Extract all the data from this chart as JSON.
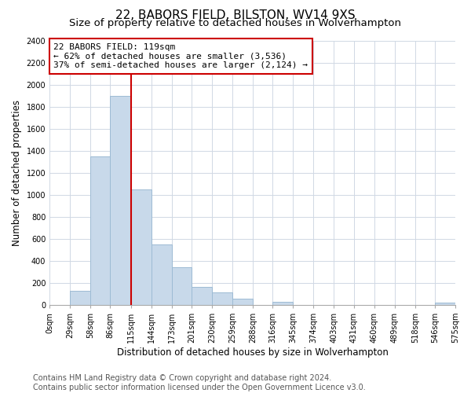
{
  "title": "22, BABORS FIELD, BILSTON, WV14 9XS",
  "subtitle": "Size of property relative to detached houses in Wolverhampton",
  "xlabel": "Distribution of detached houses by size in Wolverhampton",
  "ylabel": "Number of detached properties",
  "footer_line1": "Contains HM Land Registry data © Crown copyright and database right 2024.",
  "footer_line2": "Contains public sector information licensed under the Open Government Licence v3.0.",
  "bar_left_edges": [
    0,
    29,
    58,
    86,
    115,
    144,
    173,
    201,
    230,
    259,
    288,
    316,
    345,
    374,
    403,
    431,
    460,
    489,
    518,
    546
  ],
  "bar_widths": [
    29,
    29,
    28,
    29,
    29,
    29,
    28,
    29,
    29,
    29,
    28,
    29,
    29,
    29,
    28,
    29,
    29,
    29,
    28,
    29
  ],
  "bar_heights": [
    0,
    125,
    1350,
    1900,
    1050,
    550,
    340,
    160,
    110,
    60,
    0,
    30,
    0,
    0,
    0,
    0,
    0,
    0,
    0,
    20
  ],
  "bar_color": "#c8d9ea",
  "bar_edge_color": "#9dbbd4",
  "highlight_x": 115,
  "highlight_color": "#cc0000",
  "annotation_line1": "22 BABORS FIELD: 119sqm",
  "annotation_line2": "← 62% of detached houses are smaller (3,536)",
  "annotation_line3": "37% of semi-detached houses are larger (2,124) →",
  "annotation_box_color": "#ffffff",
  "annotation_box_edge_color": "#cc0000",
  "xlim": [
    0,
    575
  ],
  "ylim": [
    0,
    2400
  ],
  "yticks": [
    0,
    200,
    400,
    600,
    800,
    1000,
    1200,
    1400,
    1600,
    1800,
    2000,
    2200,
    2400
  ],
  "xtick_labels": [
    "0sqm",
    "29sqm",
    "58sqm",
    "86sqm",
    "115sqm",
    "144sqm",
    "173sqm",
    "201sqm",
    "230sqm",
    "259sqm",
    "288sqm",
    "316sqm",
    "345sqm",
    "374sqm",
    "403sqm",
    "431sqm",
    "460sqm",
    "489sqm",
    "518sqm",
    "546sqm",
    "575sqm"
  ],
  "xtick_positions": [
    0,
    29,
    58,
    86,
    115,
    144,
    173,
    201,
    230,
    259,
    288,
    316,
    345,
    374,
    403,
    431,
    460,
    489,
    518,
    546,
    575
  ],
  "grid_color": "#d0d8e4",
  "background_color": "#ffffff",
  "title_fontsize": 11,
  "subtitle_fontsize": 9.5,
  "axis_label_fontsize": 8.5,
  "tick_fontsize": 7,
  "annotation_fontsize": 8,
  "footer_fontsize": 7
}
